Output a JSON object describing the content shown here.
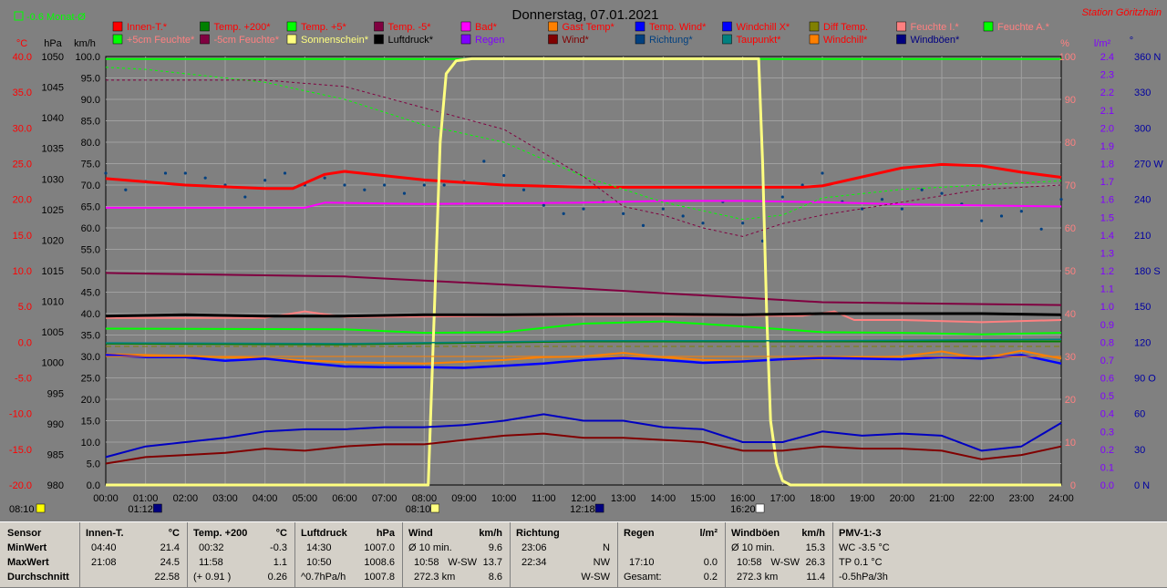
{
  "header": {
    "title": "Donnerstag, 07.01.2021",
    "station": "Station Göritzhain",
    "trend_label": "-0.6 Monat-Ø"
  },
  "units": {
    "temp": "°C",
    "pressure": "hPa",
    "wind": "km/h",
    "humidity": "%",
    "rain": "l/m²",
    "dir": "°"
  },
  "colors": {
    "grid": "#a0a0a0",
    "axis_temp": "#ff0000",
    "axis_pressure": "#000000",
    "axis_humidity": "#ff8080",
    "axis_rain": "#8000ff",
    "axis_dir": "#0000a0",
    "title": "#000000",
    "station": "#ff0000"
  },
  "legend": [
    {
      "label": "Innen-T.*",
      "color": "#ff0000",
      "text_color": "#ff0000"
    },
    {
      "label": "Temp. +200*",
      "color": "#008000",
      "text_color": "#ff0000"
    },
    {
      "label": "Temp. +5*",
      "color": "#00ff00",
      "text_color": "#ff0000"
    },
    {
      "label": "Temp. -5*",
      "color": "#800040",
      "text_color": "#ff0000"
    },
    {
      "label": "Bad*",
      "color": "#ff00ff",
      "text_color": "#ff0000"
    },
    {
      "label": "Gast Temp*",
      "color": "#ff8000",
      "text_color": "#ff0000"
    },
    {
      "label": "Temp. Wind*",
      "color": "#0000ff",
      "text_color": "#ff0000"
    },
    {
      "label": "Windchill X*",
      "color": "#0000ff",
      "text_color": "#ff0000"
    },
    {
      "label": "Diff Temp.",
      "color": "#808000",
      "text_color": "#ff0000"
    },
    {
      "label": "Feuchte I.*",
      "color": "#ff8080",
      "text_color": "#ff8080"
    },
    {
      "label": "Feuchte A.*",
      "color": "#00ff00",
      "text_color": "#ff8080"
    },
    {
      "label": "+5cm Feuchte*",
      "color": "#00ff00",
      "text_color": "#ff8080"
    },
    {
      "label": "-5cm Feuchte*",
      "color": "#800040",
      "text_color": "#ff8080"
    },
    {
      "label": "Sonnenschein*",
      "color": "#ffff80",
      "text_color": "#ffff80"
    },
    {
      "label": "Luftdruck*",
      "color": "#000000",
      "text_color": "#000000"
    },
    {
      "label": "Regen",
      "color": "#8000ff",
      "text_color": "#8000ff"
    },
    {
      "label": "Wind*",
      "color": "#800000",
      "text_color": "#800000"
    },
    {
      "label": "Richtung*",
      "color": "#004080",
      "text_color": "#004080"
    },
    {
      "label": "Taupunkt*",
      "color": "#008080",
      "text_color": "#ff0000"
    },
    {
      "label": "Windchill*",
      "color": "#ff8000",
      "text_color": "#ff0000"
    },
    {
      "label": "Windböen*",
      "color": "#000080",
      "text_color": "#000080"
    }
  ],
  "chart_data": {
    "type": "line",
    "title": "Donnerstag, 07.01.2021",
    "xlim": [
      0,
      24
    ],
    "x_ticks": [
      "00:00",
      "01:00",
      "02:00",
      "03:00",
      "04:00",
      "05:00",
      "06:00",
      "07:00",
      "08:00",
      "09:00",
      "10:00",
      "11:00",
      "12:00",
      "13:00",
      "14:00",
      "15:00",
      "16:00",
      "17:00",
      "18:00",
      "19:00",
      "20:00",
      "21:00",
      "22:00",
      "23:00",
      "24:00"
    ],
    "axes": {
      "temp": {
        "label": "°C",
        "ylim": [
          -20,
          40
        ],
        "ticks": [
          "40.0",
          "35.0",
          "30.0",
          "25.0",
          "20.0",
          "15.0",
          "10.0",
          "5.0",
          "0.0",
          "-5.0",
          "-10.0",
          "-15.0",
          "-20.0"
        ]
      },
      "pressure": {
        "label": "hPa",
        "ylim": [
          980,
          1050
        ],
        "ticks": [
          "1050",
          "1045",
          "1040",
          "1035",
          "1030",
          "1025",
          "1020",
          "1015",
          "1010",
          "1005",
          "1000",
          "995",
          "990",
          "985",
          "980"
        ]
      },
      "wind": {
        "label": "km/h",
        "ylim": [
          0,
          100
        ],
        "ticks": [
          "100.0",
          "95.0",
          "90.0",
          "85.0",
          "80.0",
          "75.0",
          "70.0",
          "65.0",
          "60.0",
          "55.0",
          "50.0",
          "45.0",
          "40.0",
          "35.0",
          "30.0",
          "25.0",
          "20.0",
          "15.0",
          "10.0",
          "5.0",
          "0.0"
        ]
      },
      "humidity": {
        "label": "%",
        "ylim": [
          0,
          100
        ],
        "ticks": [
          "100",
          "90",
          "80",
          "70",
          "60",
          "50",
          "40",
          "30",
          "20",
          "10",
          "0"
        ]
      },
      "rain": {
        "label": "l/m²",
        "ylim": [
          0,
          2.5
        ],
        "ticks": [
          "2.4",
          "2.3",
          "2.2",
          "2.1",
          "2.0",
          "1.9",
          "1.8",
          "1.7",
          "1.6",
          "1.5",
          "1.4",
          "1.3",
          "1.2",
          "1.1",
          "1.0",
          "0.9",
          "0.8",
          "0.7",
          "0.6",
          "0.5",
          "0.4",
          "0.3",
          "0.2",
          "0.1",
          "0.0"
        ]
      },
      "direction": {
        "label": "°",
        "ylim": [
          0,
          360
        ],
        "ticks": [
          "360 N",
          "330",
          "300",
          "270 W",
          "240",
          "210",
          "180 S",
          "150",
          "120",
          "90 O",
          "60",
          "30",
          "0 N"
        ]
      }
    },
    "series": [
      {
        "name": "Innen-T.*",
        "axis": "wind",
        "color": "#ff0000",
        "width": 3,
        "x": [
          0,
          2,
          4,
          4.7,
          5.5,
          6,
          8,
          10,
          12,
          14,
          16,
          17,
          17.5,
          18,
          20,
          21,
          22,
          23,
          24
        ],
        "values": [
          71.5,
          70,
          69.2,
          69.2,
          72.5,
          73.2,
          71.2,
          70,
          69.5,
          69.5,
          69.5,
          69.5,
          69.5,
          69.8,
          74,
          74.8,
          74.5,
          73,
          71.8
        ]
      },
      {
        "name": "Temp. +200*",
        "axis": "temp",
        "color": "#008000",
        "width": 2,
        "x": [
          0,
          6,
          12,
          18,
          24
        ],
        "values": [
          -0.2,
          -0.3,
          0.1,
          0.1,
          0.1
        ]
      },
      {
        "name": "Temp. +5*",
        "axis": "temp",
        "color": "#00ff00",
        "width": 2,
        "x": [
          0,
          6,
          8,
          10,
          12,
          14,
          16,
          18,
          20,
          22,
          24
        ],
        "values": [
          1.9,
          1.8,
          1.3,
          1.4,
          2.6,
          2.9,
          2.2,
          1.4,
          1.3,
          1.1,
          1.3
        ]
      },
      {
        "name": "Temp. -5*",
        "axis": "temp",
        "color": "#800040",
        "width": 2,
        "x": [
          0,
          6,
          12,
          18,
          24
        ],
        "values": [
          9.7,
          9.2,
          7.5,
          5.6,
          5.2
        ]
      },
      {
        "name": "Bad*",
        "axis": "wind",
        "color": "#ff00ff",
        "width": 2,
        "x": [
          0,
          5,
          5.5,
          8,
          12,
          14,
          16,
          18,
          20,
          24
        ],
        "values": [
          64.7,
          64.7,
          65.9,
          65.6,
          65.9,
          66.3,
          66.3,
          66,
          65.5,
          65
        ]
      },
      {
        "name": "Gast Temp*",
        "axis": "temp",
        "color": "#ff8000",
        "width": 2,
        "x": [
          0,
          2,
          4,
          6,
          8,
          10,
          11,
          12,
          13,
          14,
          15,
          16,
          18,
          20,
          21,
          22,
          23,
          24
        ],
        "values": [
          -1.7,
          -1.9,
          -2.3,
          -2.8,
          -3.0,
          -2.5,
          -2.1,
          -2.0,
          -1.5,
          -2.1,
          -2.5,
          -2.6,
          -2.3,
          -2.0,
          -1.3,
          -2.3,
          -1.2,
          -2.3
        ]
      },
      {
        "name": "Windchill X*",
        "axis": "temp",
        "color": "#0000ff",
        "width": 2.5,
        "x": [
          0,
          1,
          2,
          3,
          4,
          5,
          6,
          7,
          8,
          9,
          10,
          11,
          12,
          13,
          14,
          15,
          16,
          17,
          18,
          19,
          20,
          21,
          22,
          23,
          24
        ],
        "values": [
          -1.8,
          -2.1,
          -2.1,
          -2.6,
          -2.3,
          -2.9,
          -3.4,
          -3.5,
          -3.5,
          -3.6,
          -3.3,
          -3.0,
          -2.5,
          -2.2,
          -2.5,
          -2.9,
          -2.7,
          -2.4,
          -2.2,
          -2.3,
          -2.4,
          -2.1,
          -2.3,
          -1.8,
          -3.0
        ]
      },
      {
        "name": "Diff Temp.",
        "axis": "temp",
        "color": "#808000",
        "width": 1,
        "dash": "6,4",
        "x": [
          0,
          24
        ],
        "values": [
          -0.6,
          -0.6
        ]
      },
      {
        "name": "Feuchte I.*",
        "axis": "humidity",
        "color": "#ff8080",
        "width": 2,
        "x": [
          0,
          2,
          4,
          5,
          6,
          8,
          10,
          12,
          14,
          16,
          17.5,
          18.3,
          18.8,
          20,
          22,
          24
        ],
        "values": [
          39,
          39,
          39,
          40.5,
          39.2,
          39.3,
          39.5,
          39.5,
          39.5,
          39.5,
          39.5,
          40.5,
          38.5,
          38.5,
          38,
          38.5
        ]
      },
      {
        "name": "Feuchte A.*",
        "axis": "humidity",
        "color": "#00ff00",
        "width": 2,
        "x": [
          0,
          24
        ],
        "values": [
          99.4,
          99.4
        ]
      },
      {
        "name": "+5cm Feuchte*",
        "axis": "humidity",
        "color": "#00ff00",
        "width": 1,
        "dash": "3,3",
        "x": [
          0,
          1,
          4,
          6,
          8,
          10,
          11,
          12,
          14,
          15,
          16,
          17,
          18,
          19,
          20,
          22,
          24
        ],
        "values": [
          97.5,
          97,
          94,
          90,
          84,
          80,
          76,
          72,
          66,
          64,
          62,
          63,
          67,
          68,
          69,
          70,
          71
        ]
      },
      {
        "name": "-5cm Feuchte*",
        "axis": "humidity",
        "color": "#800040",
        "width": 1,
        "dash": "3,3",
        "x": [
          0,
          4,
          6,
          8,
          10,
          12,
          13,
          14,
          15,
          16,
          17,
          18,
          20,
          22,
          24
        ],
        "values": [
          94.5,
          94.5,
          93,
          88,
          83,
          72,
          65,
          63,
          60,
          58,
          61,
          63,
          66,
          69,
          70
        ]
      },
      {
        "name": "Sonnenschein*",
        "axis": "humidity",
        "color": "#ffff80",
        "width": 3,
        "x": [
          0,
          8.1,
          8.25,
          8.4,
          8.55,
          8.8,
          9.2,
          16.4,
          16.5,
          16.6,
          16.7,
          16.85,
          17,
          17.2,
          24
        ],
        "values": [
          0,
          0,
          40,
          80,
          96,
          99,
          99.5,
          99.5,
          75,
          40,
          15,
          5,
          1,
          0,
          0
        ]
      },
      {
        "name": "Luftdruck*",
        "axis": "pressure",
        "color": "#000000",
        "width": 3,
        "x": [
          0,
          2,
          4,
          6,
          8,
          10,
          12,
          14,
          16,
          18,
          20,
          22,
          24
        ],
        "values": [
          1007.6,
          1007.8,
          1007.6,
          1007.6,
          1007.8,
          1007.8,
          1007.9,
          1007.9,
          1007.8,
          1008.0,
          1008.0,
          1008.0,
          1007.8
        ]
      },
      {
        "name": "Wind*",
        "axis": "wind",
        "color": "#800000",
        "width": 2,
        "x": [
          0,
          1,
          2,
          3,
          4,
          5,
          6,
          7,
          8,
          9,
          10,
          11,
          12,
          13,
          14,
          15,
          16,
          17,
          18,
          19,
          20,
          21,
          22,
          23,
          24
        ],
        "values": [
          5,
          6.5,
          7,
          7.5,
          8.5,
          8,
          9,
          9.5,
          9.5,
          10.5,
          11.5,
          12,
          11,
          11,
          10.5,
          10,
          8,
          8,
          9,
          8.5,
          8.5,
          8,
          6,
          7,
          9
        ]
      },
      {
        "name": "Windböen*",
        "axis": "wind",
        "color": "#0000c0",
        "width": 2,
        "x": [
          0,
          1,
          2,
          3,
          4,
          5,
          6,
          7,
          8,
          9,
          10,
          11,
          12,
          13,
          14,
          15,
          16,
          17,
          18,
          19,
          20,
          21,
          22,
          23,
          24
        ],
        "values": [
          6.5,
          9,
          10,
          11,
          12.5,
          13,
          13,
          13.5,
          13.5,
          14,
          15,
          16.5,
          15,
          15,
          13.5,
          13,
          10,
          10,
          12.5,
          11.5,
          12,
          11.5,
          8,
          9,
          14.5
        ]
      },
      {
        "name": "Taupunkt*",
        "axis": "temp",
        "color": "#008080",
        "width": 1.5,
        "x": [
          0,
          6,
          12,
          18,
          24
        ],
        "values": [
          -0.1,
          -0.2,
          0.2,
          0.2,
          0.4
        ]
      },
      {
        "name": "Windchill*",
        "axis": "temp",
        "color": "#ff8000",
        "width": 1,
        "x": [
          0,
          24
        ],
        "values": [
          -2.0,
          -2.0
        ]
      }
    ],
    "direction_scatter": {
      "axis": "direction",
      "color": "#004080",
      "x": [
        0,
        0.5,
        1,
        1.5,
        2,
        2.5,
        3,
        3.5,
        4,
        4.5,
        5,
        5.5,
        6,
        6.5,
        7,
        7.5,
        8,
        8.5,
        9,
        9.5,
        10,
        10.5,
        11,
        11.5,
        12,
        12.5,
        13,
        13.5,
        14,
        14.5,
        15,
        15.5,
        16,
        16.5,
        17,
        17.5,
        18,
        18.5,
        19,
        19.5,
        20,
        20.5,
        21,
        21.5,
        22,
        22.5,
        23,
        23.5,
        24
      ],
      "values": [
        262,
        248,
        255,
        262,
        262,
        258,
        252,
        242,
        256,
        262,
        252,
        258,
        252,
        248,
        252,
        245,
        252,
        252,
        255,
        272,
        260,
        248,
        235,
        228,
        232,
        238,
        228,
        218,
        232,
        226,
        220,
        238,
        220,
        205,
        242,
        252,
        262,
        238,
        232,
        240,
        232,
        248,
        245,
        236,
        222,
        226,
        230,
        215,
        240
      ]
    },
    "markers": [
      {
        "label": "08:10",
        "x": 0,
        "color": "#ffff00"
      },
      {
        "label": "01:12",
        "x": 1.2,
        "color": "#000080"
      },
      {
        "label": "08:10",
        "x": 8.17,
        "color": "#ffff80"
      },
      {
        "label": "12:18",
        "x": 12.3,
        "color": "#000080"
      },
      {
        "label": "16:20",
        "x": 16.33,
        "color": "#ffffff"
      }
    ]
  },
  "summary": {
    "sensor": {
      "title": "Sensor",
      "rows": [
        "MinWert",
        "MaxWert",
        "Durchschnitt"
      ]
    },
    "innen": {
      "title": "Innen-T.",
      "unit": "°C",
      "rows": [
        {
          "a": "04:40",
          "b": "21.4"
        },
        {
          "a": "21:08",
          "b": "24.5"
        },
        {
          "a": "",
          "b": "22.58"
        }
      ]
    },
    "temp200": {
      "title": "Temp. +200",
      "unit": "°C",
      "rows": [
        {
          "a": "00:32",
          "b": "-0.3"
        },
        {
          "a": "11:58",
          "b": "1.1"
        },
        {
          "a": "(+ 0.91 )",
          "b": "0.26"
        }
      ]
    },
    "luftdruck": {
      "title": "Luftdruck",
      "unit": "hPa",
      "rows": [
        {
          "a": "14:30",
          "b": "1007.0"
        },
        {
          "a": "10:50",
          "b": "1008.6"
        },
        {
          "a": "^0.7hPa/h",
          "b": "1007.8"
        }
      ]
    },
    "wind": {
      "title": "Wind",
      "unit": "km/h",
      "rows": [
        {
          "a": "Ø 10 min.",
          "m": "",
          "b": "9.6"
        },
        {
          "a": "10:58",
          "m": "W-SW",
          "b": "13.7"
        },
        {
          "a": "272.3 km",
          "m": "",
          "b": "8.6"
        }
      ]
    },
    "richtung": {
      "title": "Richtung",
      "rows": [
        {
          "a": "23:06",
          "b": "N"
        },
        {
          "a": "22:34",
          "b": "NW"
        },
        {
          "a": "",
          "b": "W-SW"
        }
      ]
    },
    "regen": {
      "title": "Regen",
      "unit": "l/m²",
      "rows": [
        {
          "a": "",
          "b": ""
        },
        {
          "a": "17:10",
          "b": "0.0"
        },
        {
          "a": "Gesamt:",
          "b": "0.2"
        }
      ]
    },
    "boeen": {
      "title": "Windböen",
      "unit": "km/h",
      "rows": [
        {
          "a": "Ø 10 min.",
          "m": "",
          "b": "15.3"
        },
        {
          "a": "10:58",
          "m": "W-SW",
          "b": "26.3"
        },
        {
          "a": "272.3 km",
          "m": "",
          "b": "11.4"
        }
      ]
    },
    "pmv": {
      "title": "PMV-1:-3",
      "rows": [
        "WC -3.5 °C",
        "TP 0.1 °C",
        "-0.5hPa/3h"
      ]
    }
  }
}
